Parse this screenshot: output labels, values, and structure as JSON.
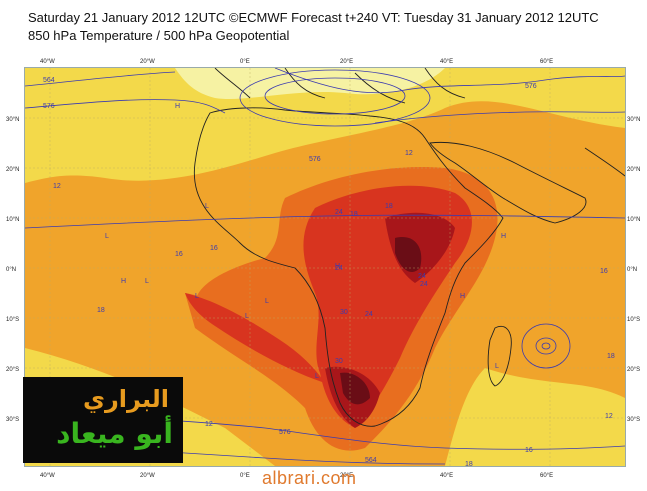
{
  "header": {
    "line1": "Saturday 21 January 2012 12UTC ©ECMWF Forecast t+240 VT: Tuesday 31 January 2012 12UTC",
    "line2": "850 hPa Temperature / 500 hPa Geopotential"
  },
  "map": {
    "lon_labels": [
      "40°W",
      "20°W",
      "0°E",
      "20°E",
      "40°E",
      "60°E"
    ],
    "lat_labels": [
      "30°N",
      "20°N",
      "10°N",
      "0°N",
      "10°S",
      "20°S",
      "30°S"
    ],
    "contour_labels": [
      "564",
      "576",
      "576",
      "576",
      "12",
      "18",
      "16",
      "16",
      "12",
      "18",
      "18",
      "24",
      "24",
      "24",
      "30",
      "24",
      "30",
      "24",
      "18",
      "16",
      "12",
      "16",
      "12",
      "564",
      "18",
      "576"
    ],
    "low_high_marks": [
      "H",
      "L",
      "L",
      "L",
      "L",
      "L",
      "H",
      "H",
      "H",
      "L",
      "L",
      "L",
      "H"
    ],
    "colors": {
      "cool": "#f6f2a3",
      "yellow": "#f3d94a",
      "orange": "#f0a42b",
      "deep_orange": "#e86e1f",
      "red": "#d8341f",
      "dark_red": "#a8161a",
      "maroon": "#6a0d16",
      "contour": "#3b3bb0",
      "coast": "#222222"
    }
  },
  "logo": {
    "line1": "البراري",
    "line2": "أبو ميعاد"
  },
  "watermark": "albrari.com"
}
